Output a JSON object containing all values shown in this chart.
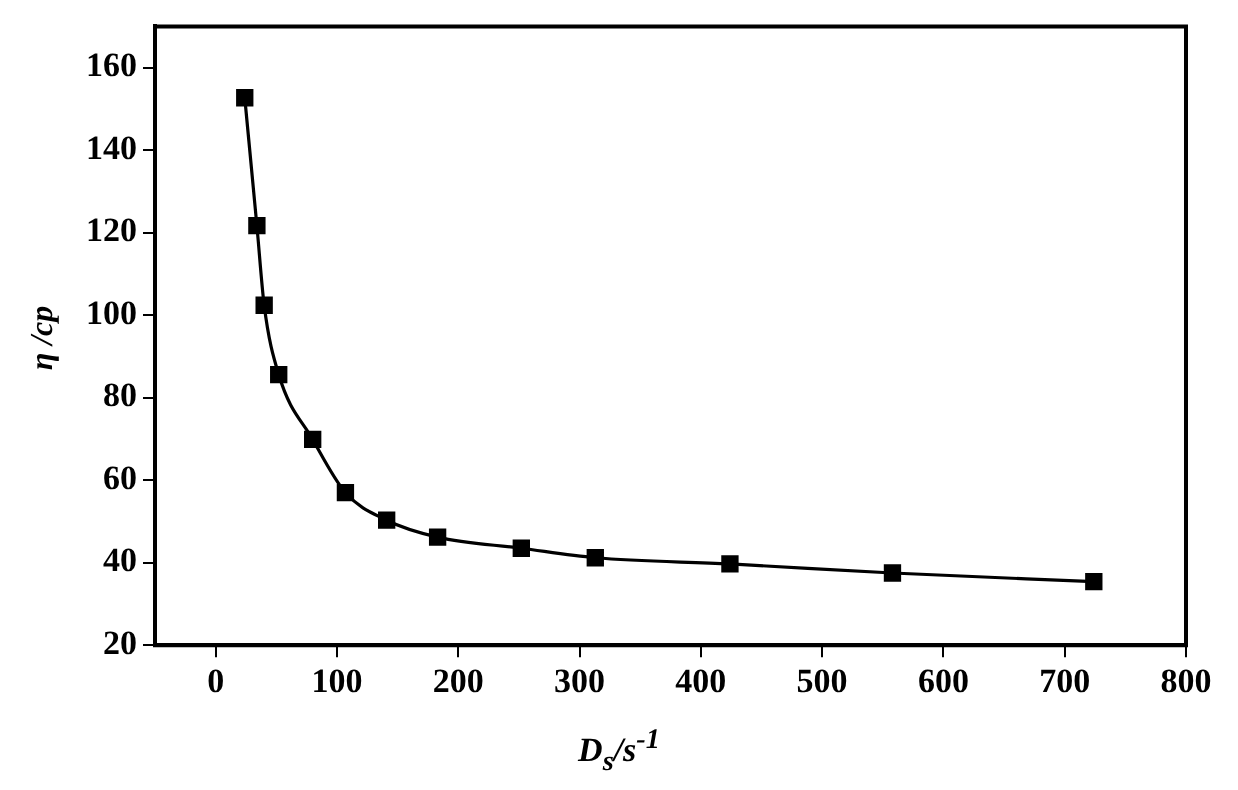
{
  "chart_data": {
    "type": "line",
    "xlabel": "D$_{s}$/s$^{-1}$",
    "ylabel": "η /cp",
    "x": [
      24,
      34,
      40,
      52,
      80,
      107,
      141,
      183,
      252,
      313,
      424,
      558,
      724
    ],
    "series": [
      {
        "color": "#000000",
        "values": [
          152.7,
          121.7,
          102.4,
          85.6,
          69.9,
          57,
          50.3,
          46.2,
          43.5,
          41.2,
          39.7,
          37.5,
          35.4
        ]
      }
    ],
    "xlim": [
      -50,
      800
    ],
    "xticks": [
      0,
      100,
      200,
      300,
      400,
      500,
      600,
      700,
      800
    ],
    "ylim": [
      20,
      170
    ],
    "yticks": [
      20,
      40,
      60,
      80,
      100,
      120,
      140,
      160
    ],
    "grid": false,
    "legend": false,
    "marker": "square",
    "line_style": "solid"
  }
}
